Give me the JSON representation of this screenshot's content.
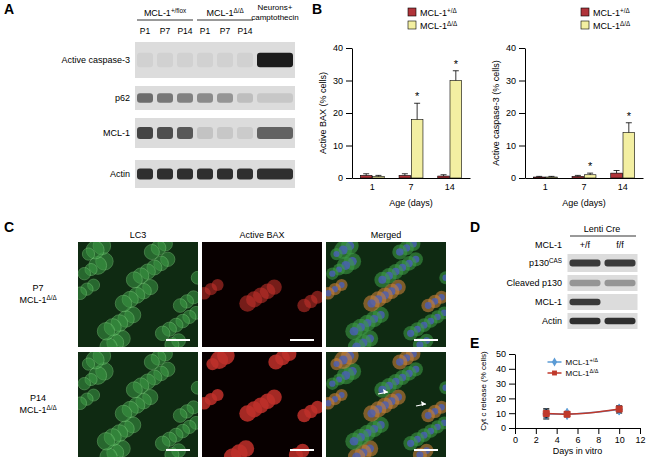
{
  "figure": {
    "panel_labels": [
      "A",
      "B",
      "C",
      "D",
      "E"
    ],
    "A": {
      "groups": [
        [
          "MCL-1+/flox"
        ],
        [
          "MCL-1Δ/Δ"
        ],
        [
          "Neurons+",
          "camptothecin"
        ]
      ],
      "lanes": [
        "P1",
        "P7",
        "P14",
        "P1",
        "P7",
        "P14"
      ],
      "rows": [
        "Active caspase-3",
        "p62",
        "MCL-1",
        "Actin"
      ]
    },
    "C": {
      "columns": [
        "LC3",
        "Active BAX",
        "Merged"
      ],
      "rows": [
        [
          "P7",
          "MCL-1Δ/Δ"
        ],
        [
          "P14",
          "MCL-1Δ/Δ"
        ]
      ]
    },
    "D": {
      "title": "Lenti Cre",
      "row_header": "MCL-1",
      "columns": [
        "+/f",
        "f/f"
      ],
      "rows": [
        {
          "base": "p130",
          "sup": "CAS"
        },
        "Cleaved p130",
        "MCL-1",
        "Actin"
      ]
    }
  },
  "chart_data": [
    {
      "type": "bar",
      "y_label": "Active BAX (% cells)",
      "x_label": "Age (days)",
      "categories": [
        "1",
        "7",
        "14"
      ],
      "ylim": [
        0,
        40
      ],
      "yticks": [
        0,
        10,
        20,
        30,
        40
      ],
      "legend": "upper right",
      "series": [
        {
          "name": "MCL-1+/Δ",
          "color": "#b0343a",
          "values": [
            0.8,
            0.8,
            0.6
          ],
          "errors": [
            0.5,
            0.5,
            0.4
          ]
        },
        {
          "name": "MCL-1Δ/Δ",
          "color": "#f3efa2",
          "values": [
            0.5,
            18,
            30
          ],
          "errors": [
            0.3,
            5,
            3
          ],
          "significance": [
            null,
            "*",
            "*"
          ]
        }
      ]
    },
    {
      "type": "bar",
      "y_label": "Active caspase-3 (% cells)",
      "x_label": "Age (days)",
      "categories": [
        "1",
        "7",
        "14"
      ],
      "ylim": [
        0,
        40
      ],
      "yticks": [
        0,
        10,
        20,
        30,
        40
      ],
      "legend": "upper right",
      "series": [
        {
          "name": "MCL-1+/Δ",
          "color": "#b0343a",
          "values": [
            0.3,
            0.5,
            1.5
          ],
          "errors": [
            0.2,
            0.3,
            0.8
          ]
        },
        {
          "name": "MCL-1Δ/Δ",
          "color": "#f3efa2",
          "values": [
            0.3,
            1,
            14
          ],
          "errors": [
            0.2,
            0.5,
            3
          ],
          "significance": [
            null,
            "*",
            "*"
          ]
        }
      ]
    },
    {
      "type": "line",
      "y_label": "Cyt c release (% cells)",
      "x_label": "Days in vitro",
      "x": [
        3,
        5,
        10
      ],
      "xlim": [
        0,
        12
      ],
      "xticks": [
        0,
        2,
        4,
        6,
        8,
        10,
        12
      ],
      "ylim": [
        0,
        50
      ],
      "yticks": [
        0,
        10,
        20,
        30,
        40,
        50
      ],
      "legend": "upper center",
      "line_style": "smooth",
      "series": [
        {
          "name": "MCL-1+/Δ",
          "color": "#5b9bd5",
          "marker": "diamond",
          "values": [
            9.5,
            9.5,
            12.5
          ],
          "errors": [
            3.5,
            1.5,
            2.5
          ]
        },
        {
          "name": "MCL-1Δ/Δ",
          "color": "#c0392b",
          "marker": "square",
          "values": [
            9.8,
            9.3,
            12.8
          ],
          "errors": [
            3,
            1.5,
            2
          ]
        }
      ]
    }
  ]
}
